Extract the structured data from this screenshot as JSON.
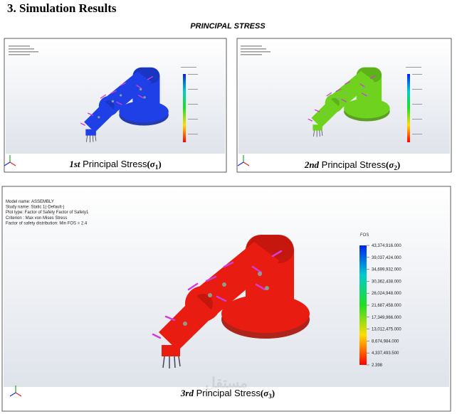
{
  "header": {
    "title": "3. Simulation Results",
    "subtitle": "PRINCIPAL STRESS"
  },
  "panels": [
    {
      "caption": {
        "ordinal": "1st",
        "label": "Principal Stress",
        "math": [
          "(",
          "σ",
          "1",
          ")"
        ]
      }
    },
    {
      "caption": {
        "ordinal": "2nd",
        "label": "Principal Stress",
        "math": [
          "(",
          "σ",
          "2",
          ")"
        ]
      }
    },
    {
      "caption": {
        "ordinal": "3rd",
        "label": "Principal Stress",
        "math": [
          "(",
          "σ",
          "3",
          ")"
        ]
      },
      "info": [
        "Model name: ASSEMBLY",
        "Study name: Static 1(-Default-)",
        "Plot type: Factor of Safety Factor of Safety1",
        "Criterion : Max von Mises Stress",
        "Factor of safety distribution: Min FOS = 2.4"
      ],
      "legend": {
        "title": "FOS",
        "labels": [
          "43,374,916.000",
          "39,037,424.000",
          "34,699,932.000",
          "30,362,438.000",
          "26,024,948.000",
          "21,687,458.000",
          "17,349,966.000",
          "13,012,475.000",
          "8,674,984.000",
          "4,337,493.500",
          "2.398"
        ]
      }
    }
  ],
  "watermark": "مستقل"
}
